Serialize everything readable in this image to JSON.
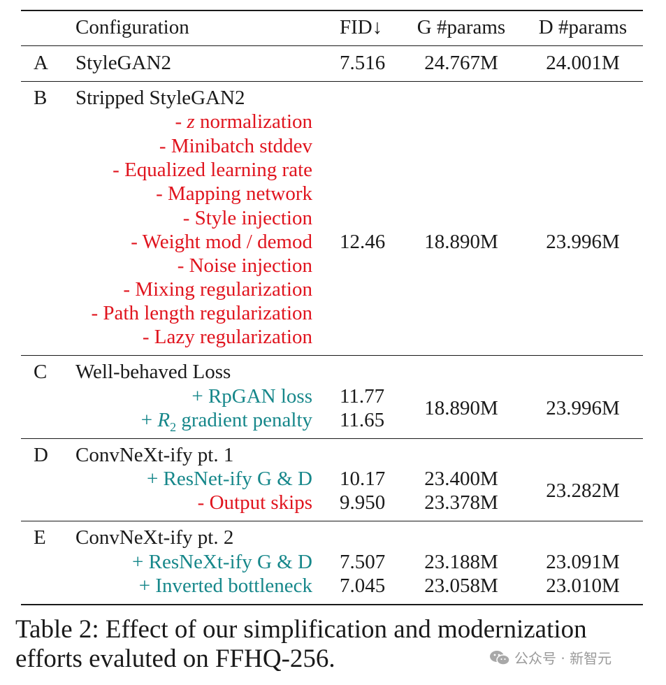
{
  "header": {
    "configuration": "Configuration",
    "fid": "FID↓",
    "g_params": "G #params",
    "d_params": "D #params"
  },
  "rows": {
    "A": {
      "label": "A",
      "name": "StyleGAN2",
      "fid": "7.516",
      "g": "24.767M",
      "d": "24.001M"
    },
    "B": {
      "label": "B",
      "name": "Stripped StyleGAN2",
      "z_prefix": "- ",
      "z_var": "z",
      "z_rest": " normalization",
      "items": [
        "- Minibatch stddev",
        "- Equalized learning rate",
        "- Mapping network",
        "- Style injection",
        "- Weight mod / demod",
        "- Noise injection",
        "- Mixing regularization",
        "- Path length regularization",
        "- Lazy regularization"
      ],
      "fid": "12.46",
      "g": "18.890M",
      "d": "23.996M"
    },
    "C": {
      "label": "C",
      "name": "Well-behaved Loss",
      "item1": "+ RpGAN loss",
      "item2_prefix": "+ ",
      "item2_var": "R",
      "item2_sub": "2",
      "item2_rest": " gradient penalty",
      "fid1": "11.77",
      "fid2": "11.65",
      "g": "18.890M",
      "d": "23.996M"
    },
    "D": {
      "label": "D",
      "name": "ConvNeXt-ify pt. 1",
      "item1": "+ ResNet-ify G & D",
      "item2": "- Output skips",
      "fid1": "10.17",
      "fid2": "9.950",
      "g1": "23.400M",
      "g2": "23.378M",
      "d": "23.282M"
    },
    "E": {
      "label": "E",
      "name": "ConvNeXt-ify pt. 2",
      "item1": "+ ResNeXt-ify G & D",
      "item2": "+ Inverted bottleneck",
      "fid1": "7.507",
      "fid2": "7.045",
      "g1": "23.188M",
      "g2": "23.058M",
      "d1": "23.091M",
      "d2": "23.010M"
    }
  },
  "caption": "Table 2: Effect of our simplification and modernization efforts evaluted on FFHQ-256.",
  "watermark": "公众号 · 新智元",
  "colors": {
    "removed": "#e0141e",
    "added": "#16878a",
    "text": "#1a1a1a"
  },
  "icons": {
    "watermark": "wechat-icon"
  }
}
